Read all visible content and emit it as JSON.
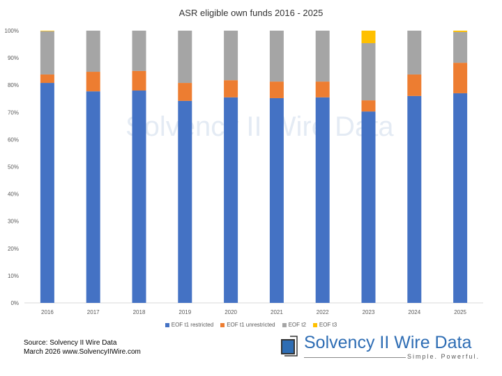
{
  "chart_data": {
    "type": "bar",
    "stacked": true,
    "percent": true,
    "title": "ASR eligible own funds 2016 - 2025",
    "categories": [
      "2016",
      "2017",
      "2018",
      "2019",
      "2020",
      "2021",
      "2022",
      "2023",
      "2024",
      "2025"
    ],
    "series": [
      {
        "name": "EOF t1 restricted",
        "color": "#4472c4",
        "values": [
          80.8,
          77.7,
          78.0,
          74.2,
          75.5,
          75.2,
          75.5,
          70.3,
          76.0,
          77.0
        ]
      },
      {
        "name": "EOF t1 unrestricted",
        "color": "#ed7d31",
        "values": [
          3.1,
          7.2,
          7.2,
          6.6,
          6.3,
          6.1,
          5.8,
          4.1,
          7.9,
          11.2
        ]
      },
      {
        "name": "EOF t2",
        "color": "#a5a5a5",
        "values": [
          15.9,
          15.1,
          14.8,
          19.2,
          18.2,
          18.7,
          18.7,
          21.0,
          16.1,
          11.3
        ]
      },
      {
        "name": "EOF t3",
        "color": "#ffc000",
        "values": [
          0.2,
          0,
          0,
          0,
          0,
          0,
          0,
          4.6,
          0,
          0.5
        ]
      }
    ],
    "ylim": [
      0,
      100
    ],
    "yticks": [
      "0%",
      "10%",
      "20%",
      "30%",
      "40%",
      "50%",
      "60%",
      "70%",
      "80%",
      "90%",
      "100%"
    ],
    "grid": false,
    "legend": "bottom"
  },
  "watermark": "Solvency II Wire Data",
  "source": {
    "line1": "Source: Solvency II Wire Data",
    "line2": "March 2026 www.SolvencyIIWire.com"
  },
  "logo": {
    "name": "Solvency II Wire Data",
    "tagline": "Simple. Powerful."
  }
}
